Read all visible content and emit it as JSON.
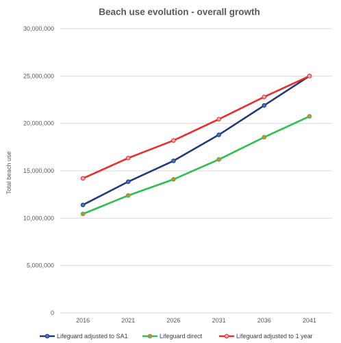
{
  "chart_data": {
    "type": "line",
    "title": "Beach use evolution - overall growth",
    "xlabel": "",
    "ylabel": "Total beach use",
    "categories": [
      "2016",
      "2021",
      "2026",
      "2031",
      "2036",
      "2041"
    ],
    "ylim": [
      0,
      30000000
    ],
    "yticks": [
      "0",
      "5,000,000",
      "10,000,000",
      "15,000,000",
      "20,000,000",
      "25,000,000",
      "30,000,000"
    ],
    "ytick_values": [
      0,
      5000000,
      10000000,
      15000000,
      20000000,
      25000000,
      30000000
    ],
    "grid": "horizontal",
    "legend_position": "bottom",
    "series": [
      {
        "name": "Lifeguard adjusted to SA1",
        "color": "#1f3b7a",
        "marker_color": "#4472c4",
        "values": [
          11400000,
          13850000,
          16050000,
          18800000,
          21900000,
          25000000
        ]
      },
      {
        "name": "Lifeguard direct",
        "color": "#2ec04f",
        "marker_color": "#ed7d31",
        "values": [
          10450000,
          12400000,
          14100000,
          16200000,
          18550000,
          20750000
        ]
      },
      {
        "name": "Lifeguard adjusted to 1 year",
        "color": "#ee2b2b",
        "marker_color": "#f4a6a6",
        "values": [
          14200000,
          16350000,
          18200000,
          20450000,
          22800000,
          25000000
        ]
      }
    ]
  }
}
